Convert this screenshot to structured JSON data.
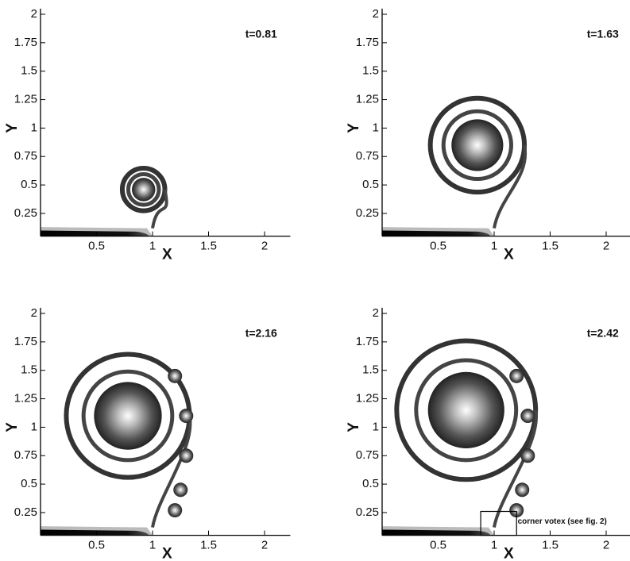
{
  "axes": {
    "x_label": "X",
    "y_label": "Y",
    "xlim": [
      0,
      2.23
    ],
    "ylim": [
      0.05,
      2.05
    ],
    "xticks": [
      0.5,
      1,
      1.5,
      2
    ],
    "yticks": [
      0.25,
      0.5,
      0.75,
      1,
      1.25,
      1.5,
      1.75,
      2
    ]
  },
  "panels": [
    {
      "time": "t=0.81"
    },
    {
      "time": "t=1.63"
    },
    {
      "time": "t=2.16"
    },
    {
      "time": "t=2.42",
      "annotation": "corner votex (see fig. 2)"
    }
  ]
}
